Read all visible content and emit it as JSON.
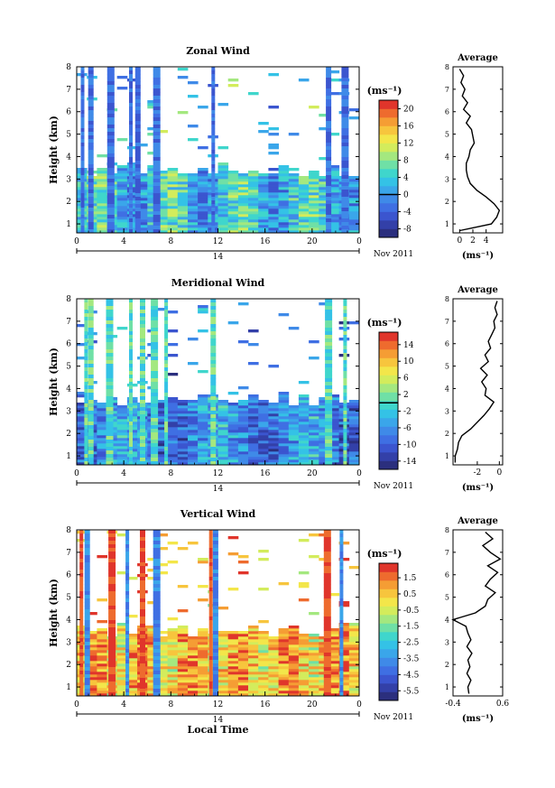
{
  "chart_data": [
    {
      "type": "heatmap",
      "title": "Zonal Wind",
      "xlabel": "",
      "ylabel": "Height (km)",
      "xlim": [
        0,
        24
      ],
      "ylim": [
        0.6,
        8
      ],
      "xticks": [
        "0",
        "4",
        "8",
        "12",
        "16",
        "20",
        "0"
      ],
      "yticks": [
        "1",
        "2",
        "3",
        "4",
        "5",
        "6",
        "7",
        "8"
      ],
      "date_day": "14",
      "date_month": "Nov 2011",
      "colorbar": {
        "unit": "(ms⁻¹)",
        "range": [
          -10,
          22
        ],
        "ticks": [
          "20",
          "16",
          "12",
          "8",
          "4",
          "0",
          "-4",
          "-8"
        ],
        "tick_values": [
          20,
          16,
          12,
          8,
          4,
          0,
          -4,
          -8
        ]
      },
      "data_top_km": 3.5,
      "sparse_columns_hours": [
        0.5,
        1.2,
        2.9,
        4.6,
        5.2,
        6.8,
        11.6,
        21.4,
        22.8
      ],
      "average": {
        "title": "Average",
        "xlabel": "(ms⁻¹)",
        "xlim": [
          -1,
          6.5
        ],
        "xticks": [
          "0",
          "2",
          "4"
        ],
        "xtick_values": [
          0,
          2,
          4
        ],
        "height_km": [
          0.7,
          1.0,
          1.3,
          1.6,
          1.9,
          2.2,
          2.5,
          2.8,
          3.1,
          3.4,
          3.7,
          4.0,
          4.3,
          4.6,
          4.9,
          5.2,
          5.5,
          5.8,
          6.1,
          6.4,
          6.7,
          7.0,
          7.3,
          7.6,
          7.9
        ],
        "values": [
          0.0,
          4.8,
          5.6,
          6.0,
          5.2,
          4.0,
          2.6,
          1.6,
          1.2,
          1.0,
          1.0,
          1.4,
          1.6,
          2.2,
          2.0,
          1.8,
          1.0,
          1.6,
          0.6,
          1.2,
          0.4,
          0.8,
          0.2,
          0.6,
          0.0
        ]
      }
    },
    {
      "type": "heatmap",
      "title": "Meridional Wind",
      "xlabel": "",
      "ylabel": "Height (km)",
      "xlim": [
        0,
        24
      ],
      "ylim": [
        0.6,
        8
      ],
      "xticks": [
        "0",
        "4",
        "8",
        "12",
        "16",
        "20",
        "0"
      ],
      "yticks": [
        "1",
        "2",
        "3",
        "4",
        "5",
        "6",
        "7",
        "8"
      ],
      "date_day": "14",
      "date_month": "Nov 2011",
      "colorbar": {
        "unit": "(ms⁻¹)",
        "range": [
          -16,
          17
        ],
        "ticks": [
          "14",
          "10",
          "6",
          "2",
          "-2",
          "-6",
          "-10",
          "-14"
        ],
        "tick_values": [
          14,
          10,
          6,
          2,
          -2,
          -6,
          -10,
          -14
        ]
      },
      "data_top_km": 3.6,
      "sparse_columns_hours": [
        0.8,
        1.2,
        2.8,
        4.6,
        5.6,
        6.6,
        7.6,
        11.6,
        21.4,
        22.8
      ],
      "average": {
        "title": "Average",
        "xlabel": "(ms⁻¹)",
        "xlim": [
          -4.2,
          0.3
        ],
        "xticks": [
          "-2",
          "0"
        ],
        "xtick_values": [
          -2,
          0
        ],
        "height_km": [
          0.7,
          1.0,
          1.3,
          1.6,
          1.9,
          2.2,
          2.5,
          2.8,
          3.1,
          3.4,
          3.7,
          4.0,
          4.3,
          4.6,
          4.9,
          5.2,
          5.5,
          5.8,
          6.1,
          6.4,
          6.7,
          7.0,
          7.3,
          7.6,
          7.9
        ],
        "values": [
          -4.0,
          -4.0,
          -3.8,
          -3.7,
          -3.4,
          -2.6,
          -2.0,
          -1.4,
          -0.9,
          -0.5,
          -1.3,
          -1.2,
          -1.6,
          -1.1,
          -1.7,
          -1.0,
          -1.3,
          -0.8,
          -1.0,
          -0.7,
          -0.4,
          -0.5,
          -0.2,
          -0.4,
          -0.2
        ]
      }
    },
    {
      "type": "heatmap",
      "title": "Vertical Wind",
      "xlabel": "Local Time",
      "ylabel": "Height (km)",
      "xlim": [
        0,
        24
      ],
      "ylim": [
        0.6,
        8
      ],
      "xticks": [
        "0",
        "4",
        "8",
        "12",
        "16",
        "20",
        "0"
      ],
      "yticks": [
        "1",
        "2",
        "3",
        "4",
        "5",
        "6",
        "7",
        "8"
      ],
      "date_day": "14",
      "date_month": "Nov 2011",
      "colorbar": {
        "unit": "(ms⁻¹)",
        "range": [
          -6.1,
          2.4
        ],
        "ticks": [
          "1.5",
          "0.5",
          "-0.5",
          "-1.5",
          "-2.5",
          "-3.5",
          "-4.5",
          "-5.5"
        ],
        "tick_values": [
          1.5,
          0.5,
          -0.5,
          -1.5,
          -2.5,
          -3.5,
          -4.5,
          -5.5
        ]
      },
      "data_top_km": 3.6,
      "sparse_columns_hours": [
        0.4,
        0.9,
        3.0,
        4.3,
        5.6,
        6.8,
        11.4,
        11.8,
        21.3,
        22.5
      ],
      "average": {
        "title": "Average",
        "xlabel": "(ms⁻¹)",
        "xlim": [
          -0.4,
          0.6
        ],
        "xticks": [
          "-0.4",
          "0.6"
        ],
        "xtick_values": [
          -0.4,
          0.6
        ],
        "height_km": [
          0.7,
          1.0,
          1.3,
          1.6,
          1.9,
          2.2,
          2.5,
          2.8,
          3.1,
          3.4,
          3.7,
          4.0,
          4.3,
          4.6,
          4.9,
          5.2,
          5.5,
          5.8,
          6.1,
          6.4,
          6.7,
          7.0,
          7.3,
          7.6,
          7.9
        ],
        "values": [
          -0.08,
          -0.1,
          -0.04,
          -0.12,
          -0.06,
          -0.1,
          -0.02,
          -0.12,
          -0.04,
          -0.1,
          -0.14,
          -0.4,
          0.05,
          0.25,
          0.3,
          0.45,
          0.25,
          0.35,
          0.5,
          0.3,
          0.55,
          0.35,
          0.2,
          0.4,
          0.25
        ]
      }
    }
  ]
}
